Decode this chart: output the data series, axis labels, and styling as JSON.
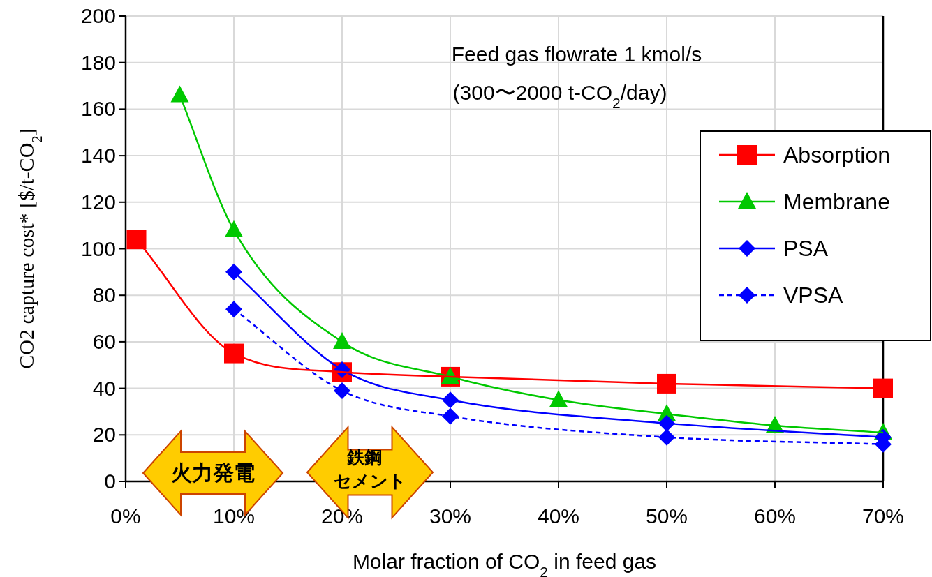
{
  "chart_data": {
    "type": "line",
    "xlabel": "Molar fraction of CO$_{2}$ in feed gas",
    "ylabel": "CO2 capture cost* [$/t-CO$_{2}$]",
    "xlim": [
      0,
      70
    ],
    "ylim": [
      0,
      200
    ],
    "xticks": [
      {
        "value": 0,
        "label": "0%"
      },
      {
        "value": 10,
        "label": "10%"
      },
      {
        "value": 20,
        "label": "20%"
      },
      {
        "value": 30,
        "label": "30%"
      },
      {
        "value": 40,
        "label": "40%"
      },
      {
        "value": 50,
        "label": "50%"
      },
      {
        "value": 60,
        "label": "60%"
      },
      {
        "value": 70,
        "label": "70%"
      }
    ],
    "yticks": [
      0,
      20,
      40,
      60,
      80,
      100,
      120,
      140,
      160,
      180,
      200
    ],
    "grid": true,
    "legend": "right",
    "annotations": [
      "Feed gas flowrate 1 kmol/s",
      "(300〜2000 t-CO$_{2}$/day)",
      "火力発電",
      "鉄鋼",
      "セメント"
    ],
    "series": [
      {
        "name": "Absorption",
        "color": "#ff0000",
        "marker": "square",
        "line_style": "solid",
        "x": [
          1,
          10,
          20,
          30,
          50,
          70
        ],
        "values": [
          104,
          55,
          47,
          45,
          42,
          40
        ]
      },
      {
        "name": "Membrane",
        "color": "#00c800",
        "marker": "triangle",
        "line_style": "solid",
        "x": [
          5,
          10,
          20,
          30,
          40,
          50,
          60,
          70
        ],
        "values": [
          166,
          108,
          60,
          45,
          35,
          29,
          24,
          21
        ]
      },
      {
        "name": "PSA",
        "color": "#0000ff",
        "marker": "diamond",
        "line_style": "solid",
        "x": [
          10,
          20,
          30,
          50,
          70
        ],
        "values": [
          90,
          48,
          35,
          25,
          19
        ]
      },
      {
        "name": "VPSA",
        "color": "#0000ff",
        "marker": "diamond",
        "line_style": "dashed",
        "x": [
          10,
          20,
          30,
          50,
          70
        ],
        "values": [
          74,
          39,
          28,
          19,
          16
        ]
      }
    ]
  }
}
